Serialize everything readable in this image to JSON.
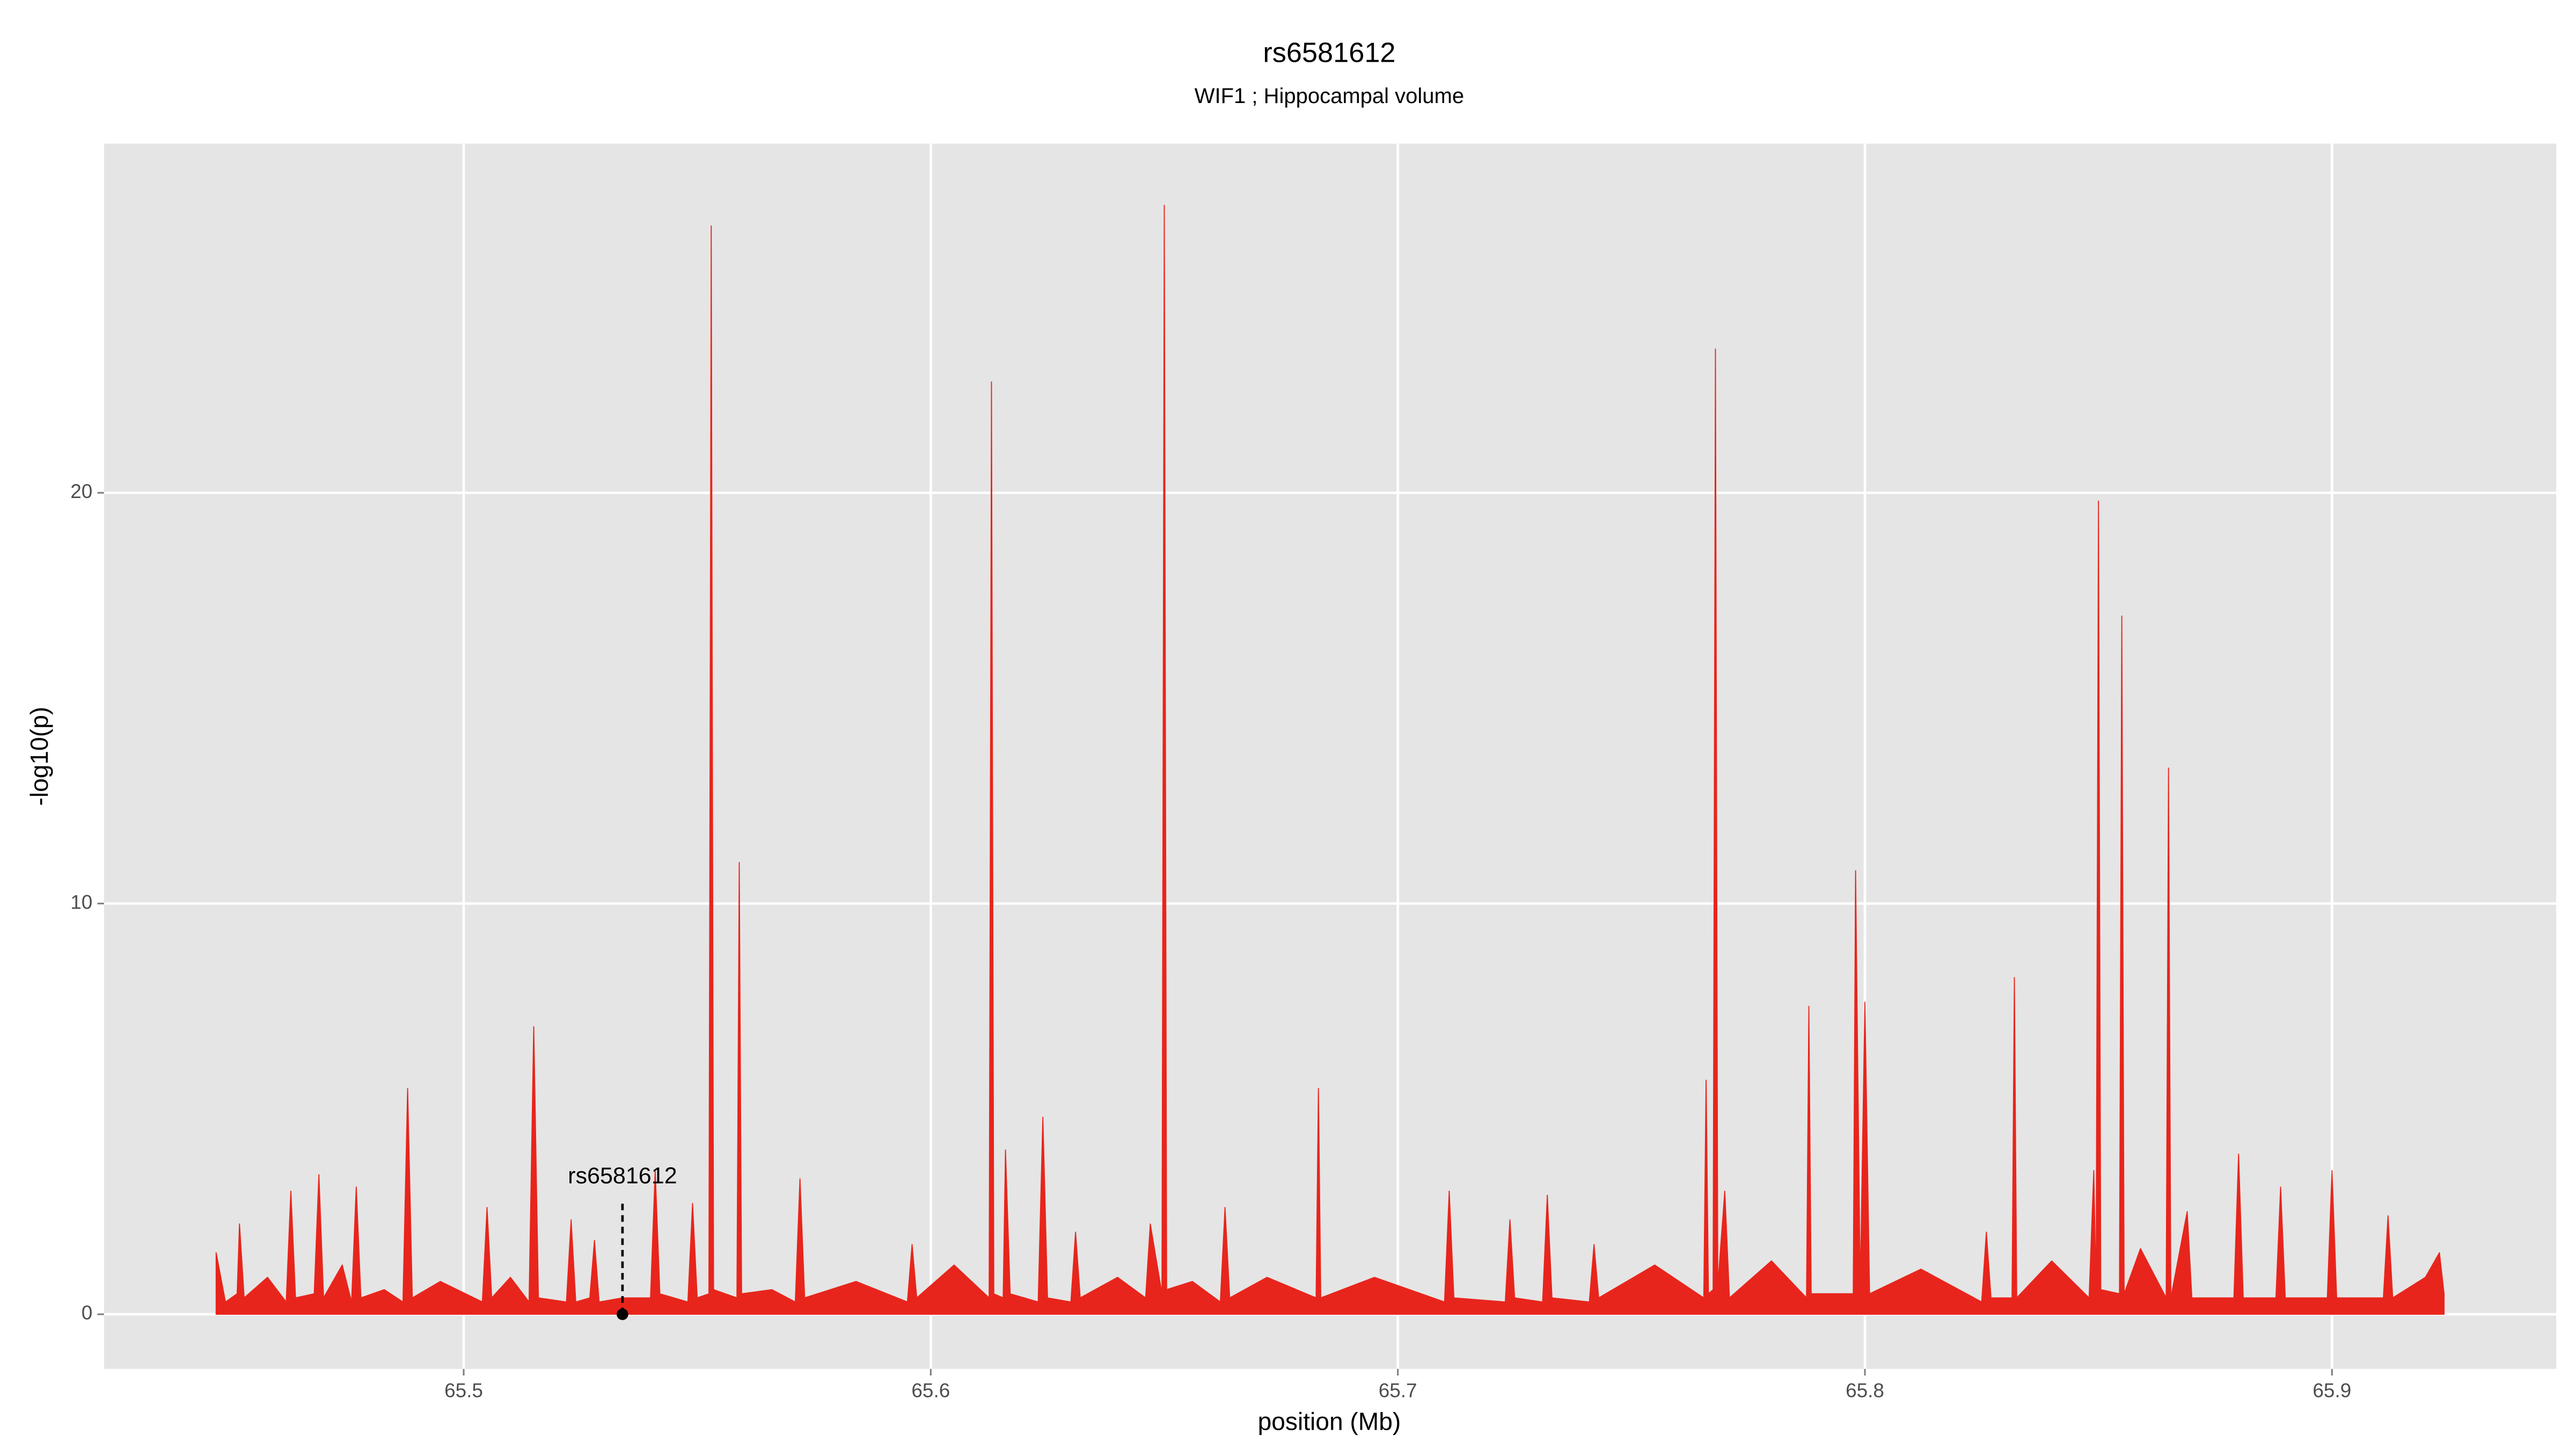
{
  "chart_data": {
    "type": "area",
    "title": "rs6581612",
    "subtitle": "WIF1 ; Hippocampal volume",
    "xlabel": "position (Mb)",
    "ylabel": "-log10(p)",
    "xlim": [
      65.423,
      65.948
    ],
    "ylim": [
      -1.33,
      28.5
    ],
    "xticks": [
      65.5,
      65.6,
      65.7,
      65.8,
      65.9
    ],
    "yticks": [
      0,
      10,
      20
    ],
    "grid": true,
    "x": [
      65.447,
      65.449,
      65.4515,
      65.452,
      65.453,
      65.458,
      65.462,
      65.463,
      65.464,
      65.468,
      65.469,
      65.47,
      65.474,
      65.476,
      65.477,
      65.478,
      65.483,
      65.487,
      65.488,
      65.489,
      65.495,
      65.504,
      65.505,
      65.506,
      65.51,
      65.514,
      65.515,
      65.516,
      65.522,
      65.523,
      65.524,
      65.527,
      65.528,
      65.529,
      65.534,
      65.54,
      65.541,
      65.542,
      65.548,
      65.549,
      65.55,
      65.5525,
      65.553,
      65.5535,
      65.5585,
      65.559,
      65.5595,
      65.566,
      65.571,
      65.572,
      65.573,
      65.584,
      65.595,
      65.596,
      65.597,
      65.605,
      65.6125,
      65.613,
      65.6135,
      65.6155,
      65.616,
      65.617,
      65.623,
      65.624,
      65.625,
      65.63,
      65.631,
      65.632,
      65.64,
      65.646,
      65.647,
      65.6495,
      65.65,
      65.6505,
      65.656,
      65.662,
      65.663,
      65.664,
      65.672,
      65.6825,
      65.683,
      65.6835,
      65.695,
      65.71,
      65.711,
      65.712,
      65.723,
      65.724,
      65.725,
      65.731,
      65.732,
      65.733,
      65.741,
      65.742,
      65.743,
      65.755,
      65.7655,
      65.766,
      65.7665,
      65.7675,
      65.768,
      65.7685,
      65.77,
      65.771,
      65.78,
      65.7875,
      65.788,
      65.7885,
      65.7975,
      65.798,
      65.799,
      65.8,
      65.801,
      65.812,
      65.825,
      65.826,
      65.827,
      65.8315,
      65.832,
      65.8325,
      65.84,
      65.848,
      65.849,
      65.8495,
      65.85,
      65.8505,
      65.8545,
      65.855,
      65.8555,
      65.859,
      65.8645,
      65.865,
      65.8655,
      65.869,
      65.87,
      65.879,
      65.88,
      65.881,
      65.888,
      65.889,
      65.89,
      65.899,
      65.9,
      65.901,
      65.911,
      65.912,
      65.913,
      65.92,
      65.923,
      65.924
    ],
    "series": [
      {
        "name": "rs6581612",
        "color": "#e8251c",
        "values": [
          1.5,
          0.3,
          0.5,
          2.2,
          0.4,
          0.9,
          0.3,
          3.0,
          0.4,
          0.5,
          3.4,
          0.4,
          1.2,
          0.3,
          3.1,
          0.4,
          0.6,
          0.3,
          5.5,
          0.4,
          0.8,
          0.3,
          2.6,
          0.4,
          0.9,
          0.3,
          7.0,
          0.4,
          0.3,
          2.3,
          0.3,
          0.4,
          1.8,
          0.3,
          0.4,
          0.4,
          3.5,
          0.5,
          0.3,
          2.7,
          0.4,
          0.5,
          26.5,
          0.6,
          0.4,
          11.0,
          0.5,
          0.6,
          0.3,
          3.3,
          0.4,
          0.8,
          0.3,
          1.7,
          0.4,
          1.2,
          0.4,
          22.7,
          0.5,
          0.4,
          4.0,
          0.5,
          0.3,
          4.8,
          0.4,
          0.3,
          2.0,
          0.4,
          0.9,
          0.4,
          2.2,
          0.5,
          27.0,
          0.6,
          0.8,
          0.3,
          2.6,
          0.4,
          0.9,
          0.4,
          5.5,
          0.4,
          0.9,
          0.3,
          3.0,
          0.4,
          0.3,
          2.3,
          0.4,
          0.3,
          2.9,
          0.4,
          0.3,
          1.7,
          0.4,
          1.2,
          0.4,
          5.7,
          0.5,
          0.6,
          23.5,
          0.7,
          3.0,
          0.4,
          1.3,
          0.4,
          7.5,
          0.5,
          0.5,
          10.8,
          0.6,
          7.6,
          0.5,
          1.1,
          0.3,
          2.0,
          0.4,
          0.4,
          8.2,
          0.4,
          1.3,
          0.4,
          3.5,
          0.5,
          19.8,
          0.6,
          0.5,
          17.0,
          0.5,
          1.6,
          0.4,
          13.3,
          0.4,
          2.5,
          0.4,
          0.4,
          3.9,
          0.4,
          0.4,
          3.1,
          0.4,
          0.4,
          3.5,
          0.4,
          0.4,
          2.4,
          0.4,
          0.9,
          1.5,
          0.5
        ]
      }
    ],
    "annotation": {
      "label": "rs6581612",
      "x": 65.534,
      "y": 0
    }
  }
}
